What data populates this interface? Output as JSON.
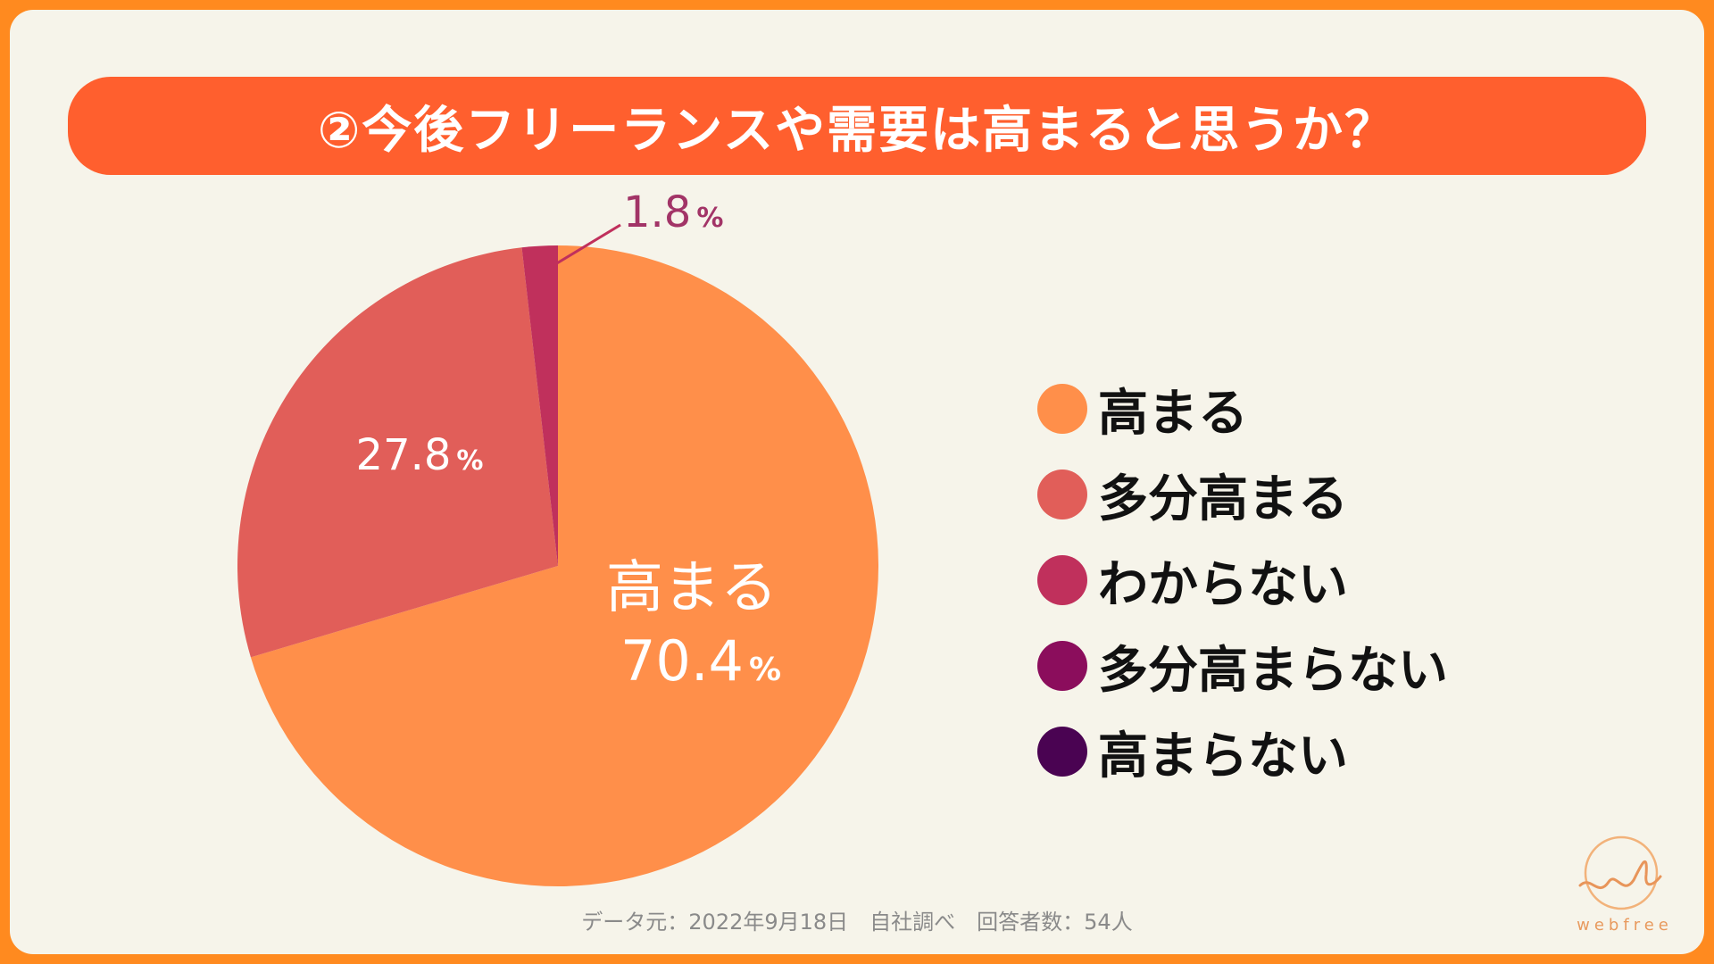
{
  "title": "②今後フリーランスや需要は高まると思うか？",
  "chart_data": {
    "type": "pie",
    "title": "②今後フリーランスや需要は高まると思うか？",
    "slices": [
      {
        "label": "高まる",
        "value": 70.4,
        "color": "#FF8F4A",
        "display": "70.4"
      },
      {
        "label": "多分高まる",
        "value": 27.8,
        "color": "#E15E59",
        "display": "27.8"
      },
      {
        "label": "わからない",
        "value": 1.8,
        "color": "#C0305C",
        "display": "1.8"
      },
      {
        "label": "多分高まらない",
        "value": 0,
        "color": "#8B0D5C",
        "display": ""
      },
      {
        "label": "高まらない",
        "value": 0,
        "color": "#4A0352",
        "display": ""
      }
    ],
    "unit": "%",
    "legend_position": "right"
  },
  "footer": "データ元：2022年9月18日　自社調べ　回答者数：54人",
  "logo_text": "webfree"
}
